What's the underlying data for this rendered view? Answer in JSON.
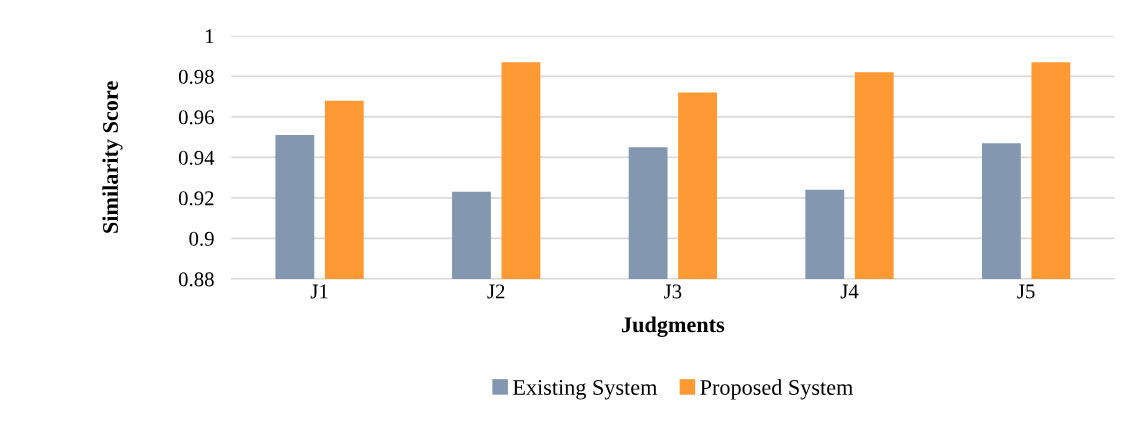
{
  "chart_data": {
    "type": "bar",
    "xlabel": "Judgments",
    "ylabel": "Similarity Score",
    "categories": [
      "J1",
      "J2",
      "J3",
      "J4",
      "J5"
    ],
    "series": [
      {
        "name": "Existing System",
        "color": "#8497b0",
        "values": [
          0.951,
          0.923,
          0.945,
          0.924,
          0.947
        ]
      },
      {
        "name": "Proposed System",
        "color": "#ff9933",
        "values": [
          0.968,
          0.987,
          0.972,
          0.982,
          0.987
        ]
      }
    ],
    "ylim": [
      0.88,
      1
    ],
    "yticks": [
      0.88,
      0.9,
      0.92,
      0.94,
      0.96,
      0.98,
      1
    ],
    "grid": "y",
    "legend": "bottom"
  }
}
